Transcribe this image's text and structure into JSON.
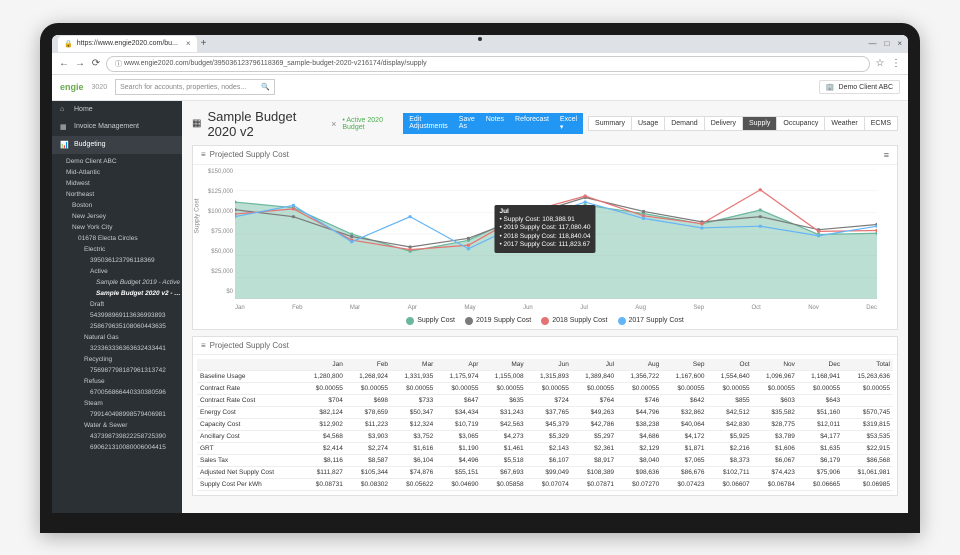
{
  "browser": {
    "tab_title": "https://www.engie2020.com/bu...",
    "url": "www.engie2020.com/budget/395036123796118369_sample-budget-2020-v216174/display/supply"
  },
  "topbar": {
    "logo": "engie",
    "logo2": "3020",
    "search_placeholder": "Search for accounts, properties, nodes...",
    "client": "Demo Client ABC"
  },
  "sidebar": {
    "home": "Home",
    "invoice": "Invoice Management",
    "budgeting": "Budgeting",
    "tree": [
      {
        "t": "Demo Client ABC",
        "l": 1
      },
      {
        "t": "Mid-Atlantic",
        "l": 1
      },
      {
        "t": "Midwest",
        "l": 1
      },
      {
        "t": "Northeast",
        "l": 1
      },
      {
        "t": "Boston",
        "l": 2
      },
      {
        "t": "New Jersey",
        "l": 2
      },
      {
        "t": "New York City",
        "l": 2
      },
      {
        "t": "01678 Electa Circles",
        "l": 3
      },
      {
        "t": "Electric",
        "l": 4
      },
      {
        "t": "395036123796118369",
        "l": 5
      },
      {
        "t": "Active",
        "l": 5
      },
      {
        "t": "Sample Budget 2019 - Active",
        "l": 6
      },
      {
        "t": "Sample Budget 2020 v2 - Active",
        "l": 6,
        "sel": true
      },
      {
        "t": "Draft",
        "l": 5
      },
      {
        "t": "543998969113636993893",
        "l": 5
      },
      {
        "t": "258679635108060443635",
        "l": 5
      },
      {
        "t": "Natural Gas",
        "l": 4
      },
      {
        "t": "323363336363632433441",
        "l": 5
      },
      {
        "t": "Recycling",
        "l": 4
      },
      {
        "t": "756987798187961313742",
        "l": 5
      },
      {
        "t": "Refuse",
        "l": 4
      },
      {
        "t": "670056866440330380596",
        "l": 5
      },
      {
        "t": "Steam",
        "l": 4
      },
      {
        "t": "799140498998579406981",
        "l": 5
      },
      {
        "t": "Water & Sewer",
        "l": 4
      },
      {
        "t": "437398739822258725390",
        "l": 5
      },
      {
        "t": "690621310080006004415",
        "l": 5
      }
    ]
  },
  "header": {
    "title": "Sample Budget 2020 v2",
    "badge": "• Active 2020 Budget",
    "buttons": [
      "Edit Adjustments",
      "Save As",
      "Notes",
      "Reforecast",
      "Excel ▾"
    ],
    "tabs": [
      "Summary",
      "Usage",
      "Demand",
      "Delivery",
      "Supply",
      "Occupancy",
      "Weather",
      "ECMS"
    ],
    "active_tab": "Supply"
  },
  "chart": {
    "title": "Projected Supply Cost",
    "ylabel": "Supply Cost",
    "ylim": [
      0,
      150000
    ],
    "yticks": [
      "$0",
      "$25,000",
      "$50,000",
      "$75,000",
      "$100,000",
      "$125,000",
      "$150,000"
    ],
    "months": [
      "Jan",
      "Feb",
      "Mar",
      "Apr",
      "May",
      "Jun",
      "Jul",
      "Aug",
      "Sep",
      "Oct",
      "Nov",
      "Dec"
    ],
    "series": [
      {
        "label": "Supply Cost",
        "color": "#6bb79e",
        "area": true,
        "dots": true,
        "values": [
          111827,
          105344,
          74876,
          55151,
          67693,
          99049,
          108389,
          98636,
          86676,
          102711,
          74423,
          75906
        ]
      },
      {
        "label": "2019 Supply Cost",
        "color": "#7a7a7a",
        "dots": true,
        "values": [
          103000,
          95000,
          72000,
          60000,
          70000,
          96000,
          117080,
          101000,
          89000,
          95000,
          80000,
          86000
        ]
      },
      {
        "label": "2018 Supply Cost",
        "color": "#e57373",
        "dots": true,
        "values": [
          98000,
          104000,
          68000,
          57000,
          62000,
          100000,
          118840,
          96000,
          87000,
          126000,
          78000,
          79000
        ]
      },
      {
        "label": "2017 Supply Cost",
        "color": "#64b5f6",
        "dots": true,
        "values": [
          95000,
          108000,
          66000,
          95000,
          58000,
          90000,
          111824,
          93000,
          82000,
          84000,
          73000,
          84000
        ]
      }
    ],
    "tooltip": {
      "header": "Jul",
      "lines": [
        "• Supply Cost: 108,388.91",
        "• 2019 Supply Cost: 117,080.40",
        "• 2018 Supply Cost: 118,840.04",
        "• 2017 Supply Cost: 111,823.67"
      ]
    }
  },
  "table": {
    "title": "Projected Supply Cost",
    "columns": [
      "",
      "Jan",
      "Feb",
      "Mar",
      "Apr",
      "May",
      "Jun",
      "Jul",
      "Aug",
      "Sep",
      "Oct",
      "Nov",
      "Dec",
      "Total"
    ],
    "rows": [
      [
        "Baseline Usage",
        "1,280,800",
        "1,268,924",
        "1,331,935",
        "1,175,974",
        "1,155,008",
        "1,315,893",
        "1,389,840",
        "1,356,722",
        "1,167,600",
        "1,554,640",
        "1,096,967",
        "1,168,941",
        "15,263,636"
      ],
      [
        "Contract Rate",
        "$0.00055",
        "$0.00055",
        "$0.00055",
        "$0.00055",
        "$0.00055",
        "$0.00055",
        "$0.00055",
        "$0.00055",
        "$0.00055",
        "$0.00055",
        "$0.00055",
        "$0.00055",
        "$0.00055"
      ],
      [
        "Contract Rate Cost",
        "$704",
        "$698",
        "$733",
        "$647",
        "$635",
        "$724",
        "$764",
        "$746",
        "$642",
        "$855",
        "$603",
        "$643",
        ""
      ],
      [
        "Energy Cost",
        "$82,124",
        "$78,659",
        "$50,347",
        "$34,434",
        "$31,243",
        "$37,765",
        "$49,263",
        "$44,796",
        "$32,862",
        "$42,512",
        "$35,582",
        "$51,160",
        "$570,745"
      ],
      [
        "Capacity Cost",
        "$12,902",
        "$11,223",
        "$12,324",
        "$10,719",
        "$42,563",
        "$45,379",
        "$42,786",
        "$38,238",
        "$40,064",
        "$42,830",
        "$28,775",
        "$12,011",
        "$319,815"
      ],
      [
        "Ancillary Cost",
        "$4,568",
        "$3,903",
        "$3,752",
        "$3,065",
        "$4,273",
        "$5,329",
        "$5,297",
        "$4,686",
        "$4,172",
        "$5,925",
        "$3,789",
        "$4,177",
        "$53,535"
      ],
      [
        "GRT",
        "$2,414",
        "$2,274",
        "$1,616",
        "$1,190",
        "$1,461",
        "$2,143",
        "$2,361",
        "$2,129",
        "$1,871",
        "$2,216",
        "$1,606",
        "$1,635",
        "$22,915"
      ],
      [
        "Sales Tax",
        "$8,116",
        "$8,587",
        "$6,104",
        "$4,496",
        "$5,518",
        "$6,107",
        "$8,917",
        "$8,040",
        "$7,065",
        "$8,373",
        "$6,067",
        "$6,179",
        "$86,568"
      ],
      [
        "Adjusted Net Supply Cost",
        "$111,827",
        "$105,344",
        "$74,876",
        "$55,151",
        "$67,693",
        "$99,049",
        "$108,389",
        "$98,636",
        "$86,676",
        "$102,711",
        "$74,423",
        "$75,906",
        "$1,061,981"
      ],
      [
        "Supply Cost Per kWh",
        "$0.08731",
        "$0.08302",
        "$0.05622",
        "$0.04690",
        "$0.05858",
        "$0.07074",
        "$0.07871",
        "$0.07270",
        "$0.07423",
        "$0.06607",
        "$0.06784",
        "$0.06665",
        "$0.06985"
      ]
    ]
  }
}
